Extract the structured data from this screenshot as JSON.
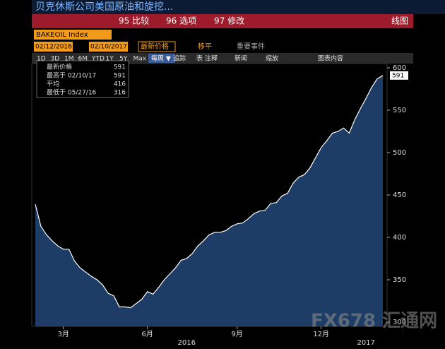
{
  "ui": {
    "title": "贝克休斯公司美国原油和旋挖...",
    "menu": [
      "95 比较",
      "96 选项",
      "97 修改"
    ],
    "view": "线图",
    "ticker": "BAKEOIL Index",
    "start_date": "02/12/2016",
    "end_date": "02/10/2017",
    "field": "最新价格",
    "move": "移平",
    "events": "重要事件",
    "ranges": [
      "1D",
      "3D",
      "1M",
      "6M",
      "YTD",
      "1Y",
      "5Y",
      "Max"
    ],
    "period": "每周 ▼",
    "table": "表",
    "tools": [
      "追踪",
      "注释",
      "新闻",
      "缩放"
    ],
    "chart_content": "图表内容",
    "watermark": "FX678 汇通网"
  },
  "legend": [
    {
      "label": "最新价格",
      "value": "591"
    },
    {
      "label": "最高于 02/10/17",
      "value": "591"
    },
    {
      "label": "平均",
      "value": "416"
    },
    {
      "label": "最低于 05/27/16",
      "value": "316"
    }
  ],
  "chart_data": {
    "type": "area",
    "color": "#1d3d66",
    "categories": [
      null,
      null,
      null,
      null,
      null,
      "3月",
      null,
      null,
      null,
      null,
      null,
      null,
      null,
      null,
      null,
      null,
      null,
      null,
      null,
      null,
      "6月",
      null,
      null,
      null,
      null,
      null,
      null,
      null,
      null,
      null,
      null,
      null,
      null,
      null,
      null,
      null,
      "9月",
      null,
      null,
      null,
      null,
      null,
      null,
      null,
      null,
      null,
      null,
      null,
      null,
      null,
      null,
      "12月",
      null,
      null,
      null,
      null,
      null,
      null,
      null,
      null,
      null,
      null,
      null
    ],
    "years": [
      null,
      null,
      null,
      null,
      null,
      null,
      null,
      null,
      null,
      null,
      null,
      null,
      null,
      null,
      null,
      null,
      null,
      null,
      null,
      null,
      null,
      null,
      null,
      null,
      null,
      null,
      null,
      "2016",
      null,
      null,
      null,
      null,
      null,
      null,
      null,
      null,
      null,
      null,
      null,
      null,
      null,
      null,
      null,
      null,
      null,
      null,
      null,
      null,
      null,
      null,
      null,
      null,
      null,
      null,
      null,
      null,
      null,
      null,
      null,
      "2017",
      null,
      null,
      null
    ],
    "values": [
      439,
      413,
      403,
      396,
      390,
      386,
      386,
      372,
      364,
      359,
      354,
      350,
      344,
      334,
      331,
      318,
      318,
      317,
      322,
      327,
      336,
      333,
      341,
      350,
      357,
      364,
      373,
      375,
      381,
      390,
      396,
      403,
      406,
      406,
      408,
      413,
      416,
      417,
      422,
      428,
      431,
      432,
      440,
      441,
      449,
      452,
      464,
      471,
      474,
      482,
      494,
      506,
      514,
      523,
      525,
      529,
      523,
      539,
      552,
      564,
      577,
      587,
      591
    ],
    "ylim": [
      295,
      605
    ],
    "yticks": [
      300,
      350,
      400,
      450,
      500,
      550,
      600
    ]
  }
}
